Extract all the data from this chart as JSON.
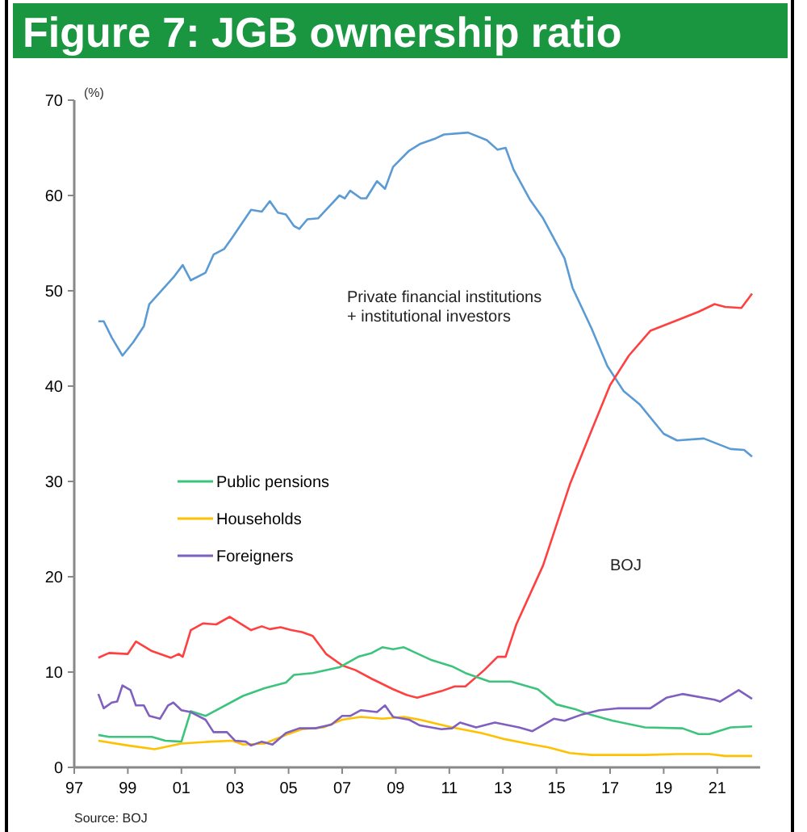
{
  "chart_data": {
    "type": "line",
    "title": "Figure 7: JGB ownership ratio",
    "ylabel": "(%)",
    "xlim": [
      1997,
      2022.6
    ],
    "xticks": [
      {
        "value": 1997,
        "label": "97"
      },
      {
        "value": 1999,
        "label": "99"
      },
      {
        "value": 2001,
        "label": "01"
      },
      {
        "value": 2003,
        "label": "03"
      },
      {
        "value": 2005,
        "label": "05"
      },
      {
        "value": 2007,
        "label": "07"
      },
      {
        "value": 2009,
        "label": "09"
      },
      {
        "value": 2011,
        "label": "11"
      },
      {
        "value": 2013,
        "label": "13"
      },
      {
        "value": 2015,
        "label": "15"
      },
      {
        "value": 2017,
        "label": "17"
      },
      {
        "value": 2019,
        "label": "19"
      },
      {
        "value": 2021,
        "label": "21"
      }
    ],
    "ylim": [
      0,
      70
    ],
    "yticks": [
      0,
      10,
      20,
      30,
      40,
      50,
      60,
      70
    ],
    "grid": false,
    "legend": "center left",
    "marker": "none",
    "line_style": "solid",
    "series": [
      {
        "color": "#5b9bd5",
        "x": [
          1997.9,
          1998.1,
          1998.4,
          1998.8,
          1999.2,
          1999.6,
          1999.8,
          2000.7,
          2001.05,
          2001.35,
          2001.9,
          2002.2,
          2002.6,
          2002.9,
          2003.6,
          2004.0,
          2004.3,
          2004.6,
          2004.9,
          2005.2,
          2005.4,
          2005.7,
          2006.1,
          2006.9,
          2007.1,
          2007.3,
          2007.7,
          2007.9,
          2008.3,
          2008.6,
          2008.9,
          2009.5,
          2009.9,
          2010.5,
          2010.8,
          2011.7,
          2012.4,
          2012.8,
          2013.1,
          2013.4,
          2014.0,
          2014.5,
          2015.3,
          2015.6,
          2016.3,
          2016.9,
          2017.5,
          2018.1,
          2019.0,
          2019.5,
          2020.5,
          2021.5,
          2022.0,
          2022.3
        ],
        "values": [
          46.8,
          46.8,
          45.1,
          43.2,
          44.6,
          46.3,
          48.6,
          51.4,
          52.7,
          51.1,
          51.9,
          53.8,
          54.4,
          55.6,
          58.5,
          58.3,
          59.4,
          58.2,
          58.0,
          56.8,
          56.5,
          57.5,
          57.6,
          60.0,
          59.7,
          60.5,
          59.7,
          59.7,
          61.5,
          60.7,
          63.0,
          64.7,
          65.4,
          66.0,
          66.4,
          66.6,
          65.8,
          64.8,
          65.0,
          62.7,
          59.6,
          57.6,
          53.4,
          50.3,
          46.1,
          42.1,
          39.5,
          38.1,
          35.0,
          34.3,
          34.5,
          33.4,
          33.3,
          32.6
        ]
      },
      {
        "color": "#ff4040",
        "x": [
          1997.9,
          1998.3,
          1999.0,
          1999.3,
          1999.9,
          2000.6,
          2000.9,
          2001.05,
          2001.35,
          2001.8,
          2002.3,
          2002.8,
          2003.6,
          2004.0,
          2004.3,
          2004.7,
          2005.1,
          2005.5,
          2005.9,
          2006.4,
          2007.0,
          2007.5,
          2008.1,
          2008.9,
          2009.4,
          2009.8,
          2010.7,
          2011.2,
          2011.6,
          2012.3,
          2012.8,
          2013.1,
          2013.5,
          2014.5,
          2015.5,
          2016.3,
          2017.0,
          2017.7,
          2018.5,
          2019.5,
          2020.3,
          2020.9,
          2021.3,
          2021.9,
          2022.3
        ],
        "values": [
          11.5,
          12.0,
          11.9,
          13.2,
          12.2,
          11.5,
          11.9,
          11.6,
          14.4,
          15.1,
          15.0,
          15.8,
          14.4,
          14.8,
          14.5,
          14.7,
          14.4,
          14.2,
          13.8,
          11.9,
          10.7,
          10.2,
          9.3,
          8.2,
          7.6,
          7.3,
          8.0,
          8.5,
          8.5,
          10.2,
          11.6,
          11.6,
          15.0,
          21.2,
          29.7,
          35.3,
          40.1,
          43.2,
          45.8,
          46.9,
          47.8,
          48.6,
          48.3,
          48.2,
          49.7
        ]
      },
      {
        "name": "Public pensions",
        "color": "#3cc47c",
        "x": [
          1997.9,
          1998.3,
          1999.9,
          2000.4,
          2001.0,
          2001.35,
          2001.9,
          2003.3,
          2004.1,
          2004.9,
          2005.2,
          2005.9,
          2006.9,
          2007.6,
          2008.1,
          2008.5,
          2008.9,
          2009.3,
          2010.3,
          2011.1,
          2011.6,
          2012.5,
          2013.3,
          2014.3,
          2015.0,
          2015.7,
          2016.3,
          2017.1,
          2018.3,
          2019.7,
          2020.3,
          2020.7,
          2021.5,
          2022.3
        ],
        "values": [
          3.4,
          3.2,
          3.2,
          2.8,
          2.7,
          5.9,
          5.4,
          7.5,
          8.3,
          8.9,
          9.7,
          9.9,
          10.5,
          11.6,
          12.0,
          12.6,
          12.4,
          12.6,
          11.3,
          10.6,
          9.9,
          9.0,
          9.0,
          8.2,
          6.6,
          6.1,
          5.5,
          4.9,
          4.2,
          4.1,
          3.5,
          3.5,
          4.2,
          4.3
        ]
      },
      {
        "name": "Households",
        "color": "#ffc000",
        "x": [
          1997.9,
          1999.0,
          2000.0,
          2001.0,
          2002.1,
          2002.9,
          2003.3,
          2004.1,
          2004.9,
          2005.5,
          2006.3,
          2007.0,
          2007.7,
          2008.5,
          2009.3,
          2009.9,
          2011.1,
          2012.2,
          2013.0,
          2014.1,
          2014.7,
          2015.5,
          2016.3,
          2018.3,
          2019.5,
          2020.7,
          2021.3,
          2022.3
        ],
        "values": [
          2.8,
          2.3,
          1.9,
          2.5,
          2.7,
          2.8,
          2.4,
          2.5,
          3.4,
          4.0,
          4.2,
          5.0,
          5.3,
          5.1,
          5.3,
          5.0,
          4.2,
          3.6,
          3.0,
          2.4,
          2.1,
          1.5,
          1.3,
          1.3,
          1.4,
          1.4,
          1.2,
          1.2
        ]
      },
      {
        "name": "Foreigners",
        "color": "#7f5fbf",
        "x": [
          1997.9,
          1998.1,
          1998.4,
          1998.6,
          1998.8,
          1999.1,
          1999.3,
          1999.6,
          1999.8,
          2000.2,
          2000.5,
          2000.7,
          2001.0,
          2001.35,
          2001.9,
          2002.2,
          2002.7,
          2003.0,
          2003.4,
          2003.6,
          2004.0,
          2004.4,
          2004.9,
          2005.4,
          2006.0,
          2006.6,
          2007.0,
          2007.3,
          2007.7,
          2008.3,
          2008.6,
          2008.9,
          2009.5,
          2009.9,
          2010.7,
          2011.1,
          2011.4,
          2012.0,
          2012.7,
          2013.6,
          2014.1,
          2014.9,
          2015.3,
          2015.9,
          2016.6,
          2017.3,
          2018.1,
          2018.5,
          2019.1,
          2019.7,
          2020.9,
          2021.1,
          2021.8,
          2022.3
        ],
        "values": [
          7.7,
          6.2,
          6.8,
          6.9,
          8.6,
          8.1,
          6.5,
          6.5,
          5.4,
          5.1,
          6.5,
          6.8,
          6.0,
          5.8,
          5.0,
          3.7,
          3.7,
          2.8,
          2.7,
          2.3,
          2.7,
          2.4,
          3.6,
          4.1,
          4.1,
          4.5,
          5.4,
          5.4,
          6.0,
          5.8,
          6.5,
          5.3,
          5.0,
          4.4,
          4.0,
          4.1,
          4.7,
          4.2,
          4.7,
          4.2,
          3.8,
          5.1,
          4.9,
          5.5,
          6.0,
          6.2,
          6.2,
          6.2,
          7.3,
          7.7,
          7.1,
          6.9,
          8.1,
          7.2
        ]
      }
    ],
    "annotations": [
      "Private financial institutions\n+ institutional investors",
      "BOJ",
      "Source: BOJ"
    ]
  }
}
